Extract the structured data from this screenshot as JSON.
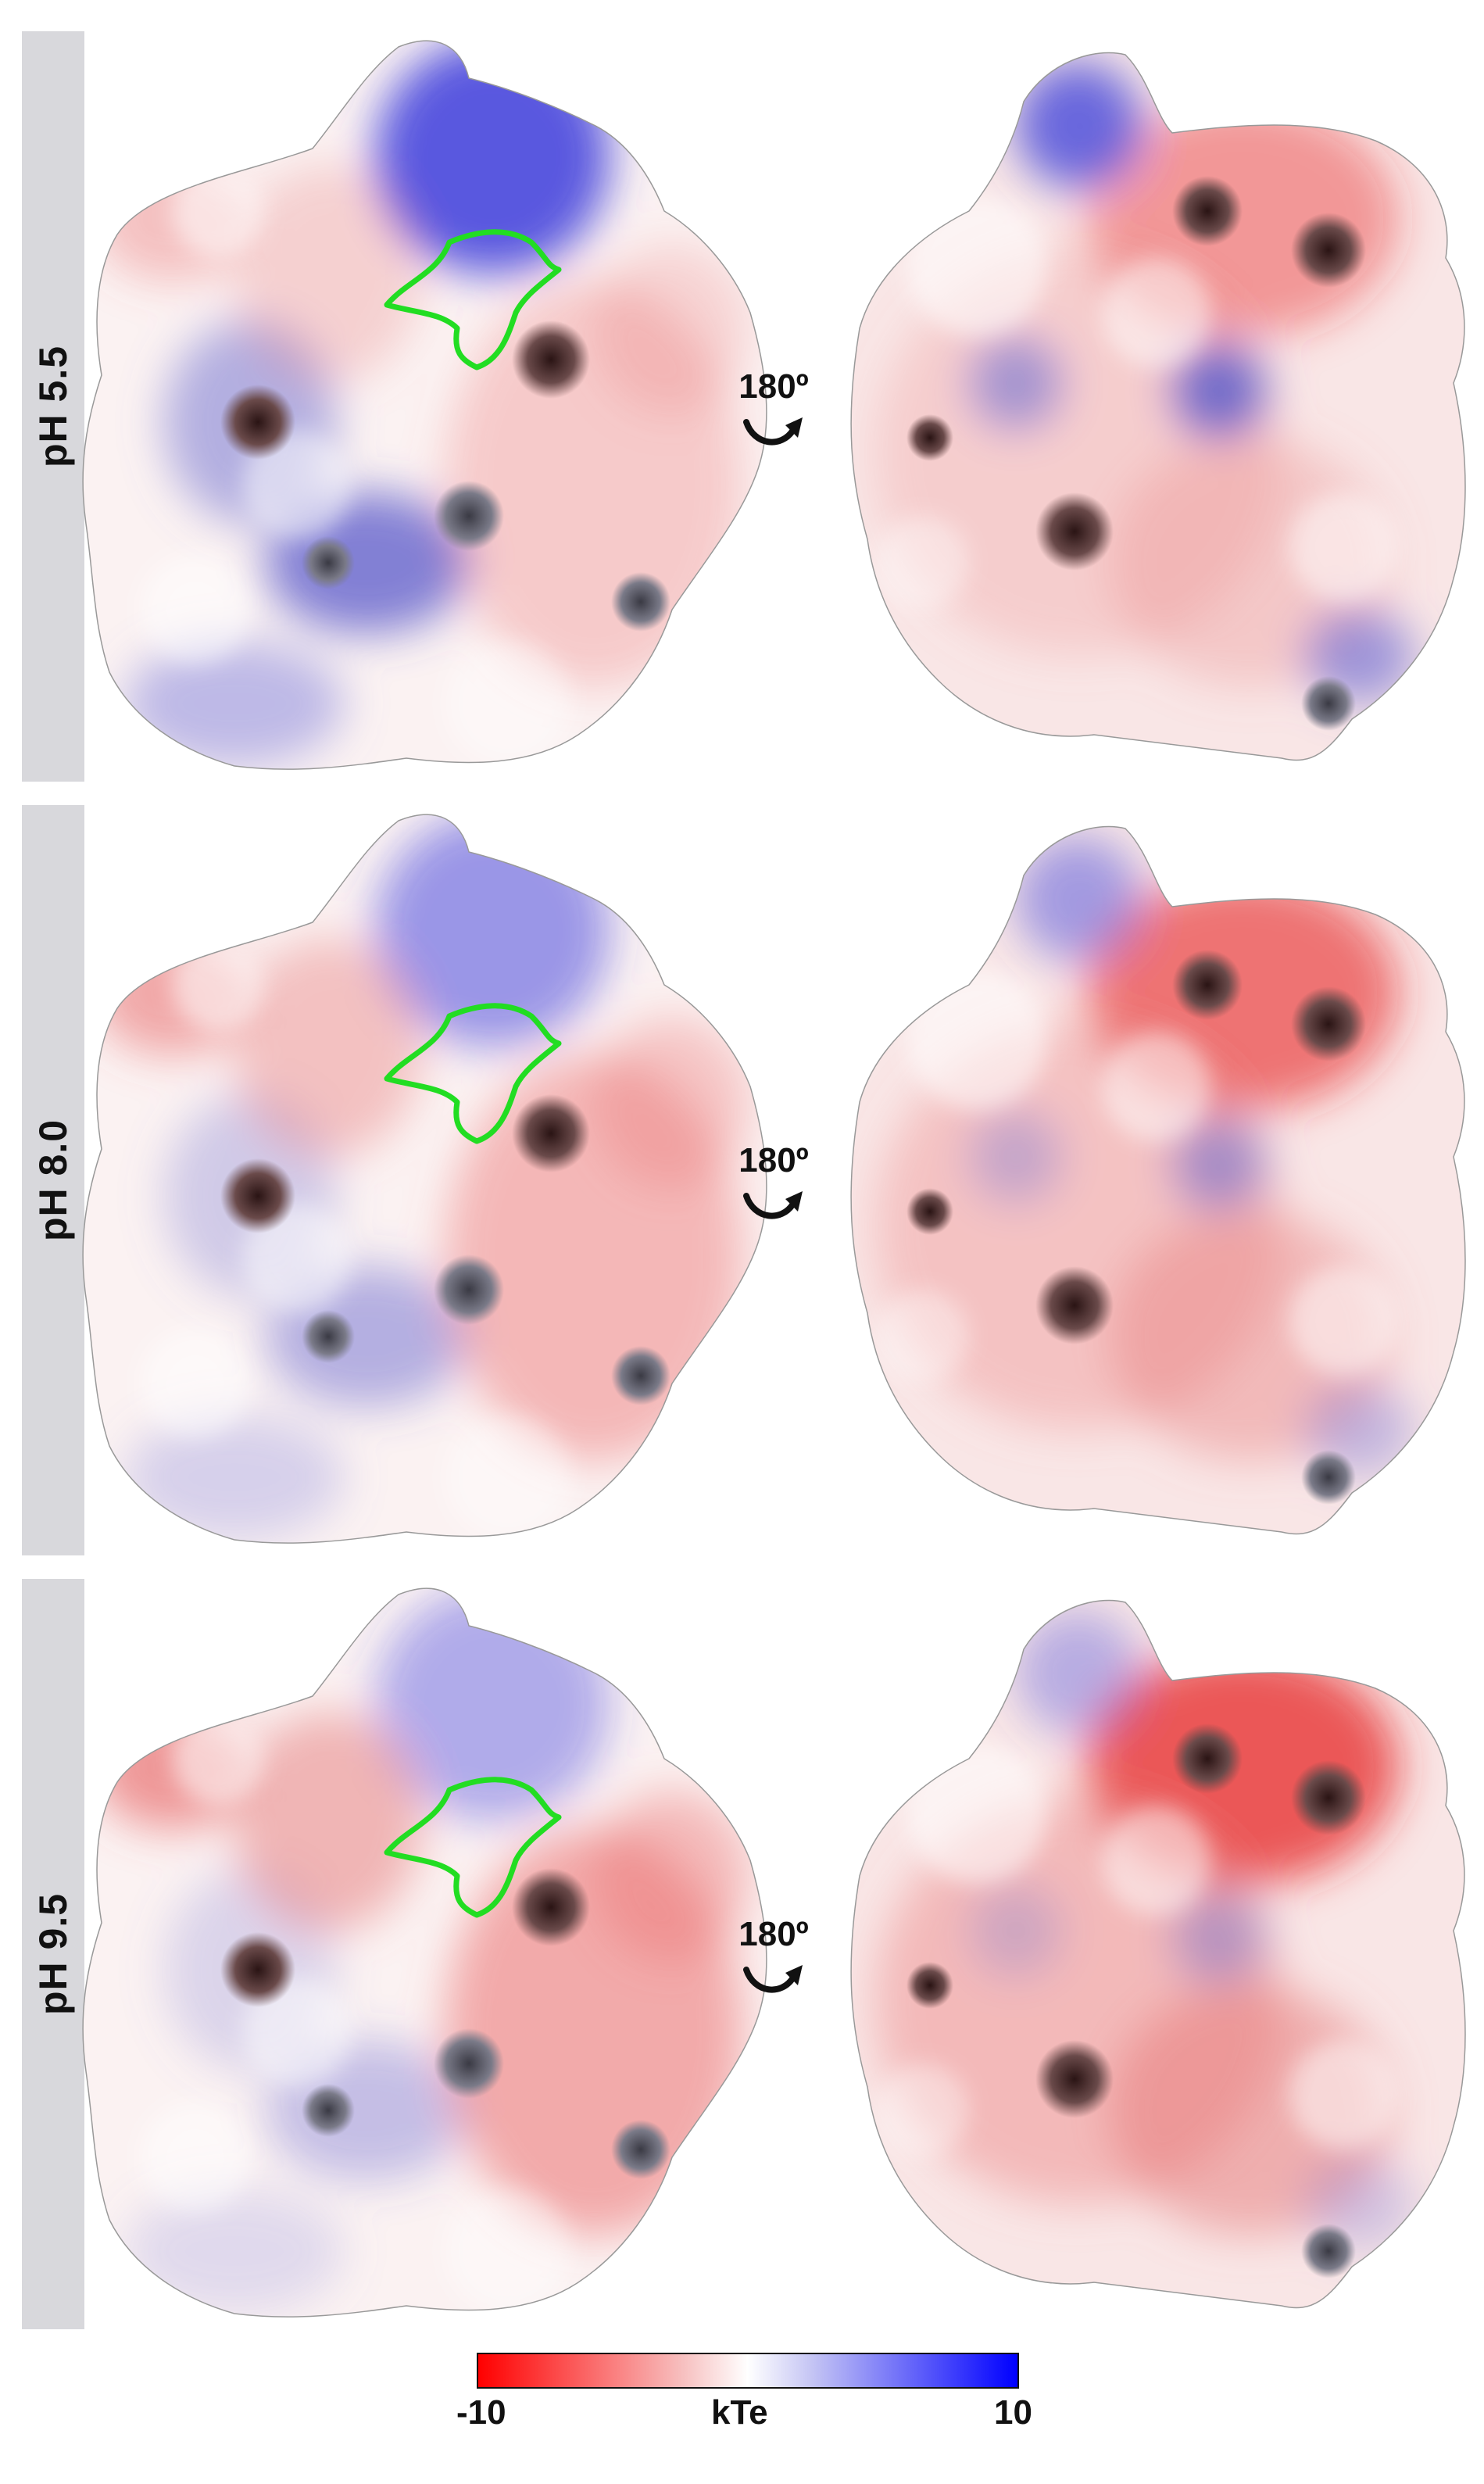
{
  "panels": [
    {
      "label": "pH 5.5",
      "rotation": "180º"
    },
    {
      "label": "pH 8.0",
      "rotation": "180º"
    },
    {
      "label": "pH 9.5",
      "rotation": "180º"
    }
  ],
  "legend": {
    "min_label": "-10",
    "unit_label": "kTe",
    "max_label": "10",
    "colors": {
      "negative": "#ff0000",
      "neutral": "#ffffff",
      "positive": "#0000ff"
    }
  },
  "highlight_color": "#22dd22"
}
